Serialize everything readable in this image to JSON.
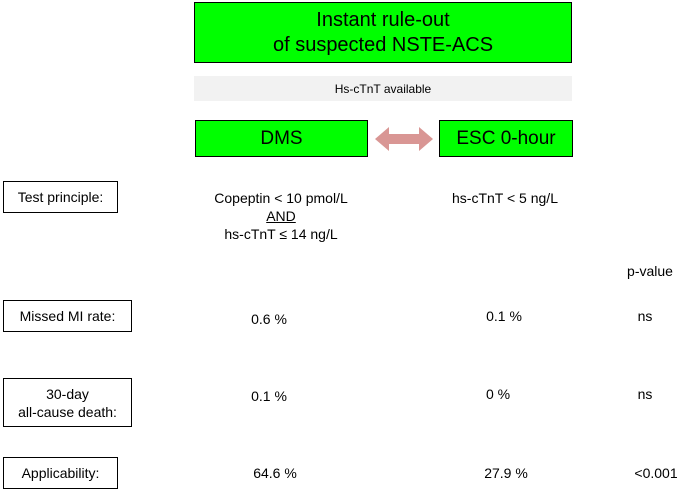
{
  "header": {
    "title_line1": "Instant rule-out",
    "title_line2": "of suspected NSTE-ACS",
    "availability": "Hs-cTnT available"
  },
  "strategies": {
    "left": "DMS",
    "right": "ESC 0-hour"
  },
  "colors": {
    "box_green": "#00ff00",
    "arrow": "#d99694",
    "bar_grey": "#f2f2f2"
  },
  "rows": {
    "test_principle": {
      "label": "Test principle:",
      "dms_line1": "Copeptin < 10 pmol/L",
      "dms_and": "AND",
      "dms_line2": "hs-cTnT ≤ 14 ng/L",
      "esc": "hs-cTnT < 5 ng/L"
    },
    "pvalue_header": "p-value",
    "missed_mi": {
      "label": "Missed MI rate:",
      "dms": "0.6 %",
      "esc": "0.1 %",
      "p": "ns"
    },
    "death": {
      "label_line1": "30-day",
      "label_line2": "all-cause death:",
      "dms": "0.1 %",
      "esc": "0 %",
      "p": "ns"
    },
    "applicability": {
      "label": "Applicability:",
      "dms": "64.6 %",
      "esc": "27.9 %",
      "p": "<0.001"
    }
  }
}
